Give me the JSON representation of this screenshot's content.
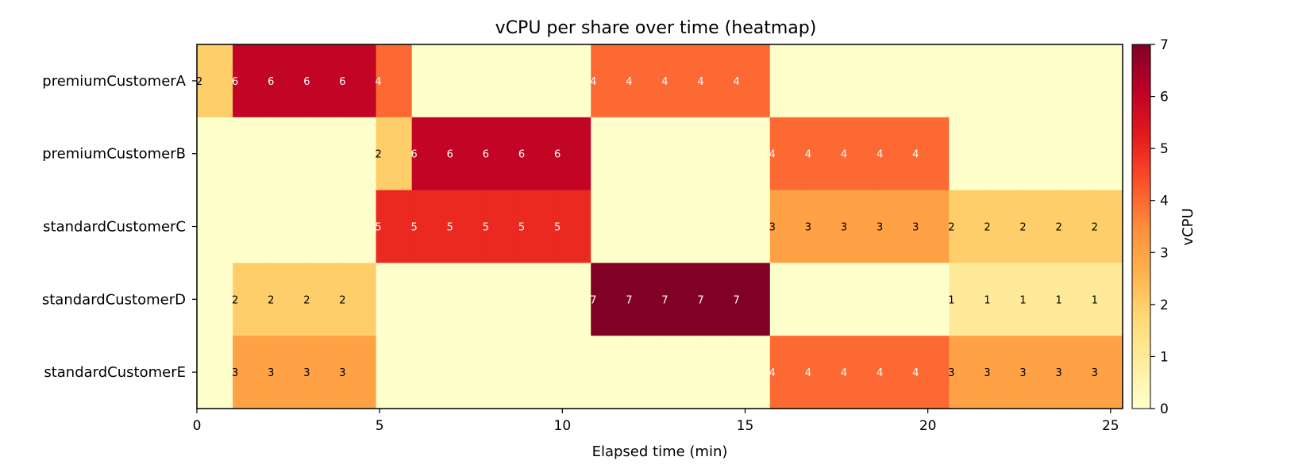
{
  "chart_data": {
    "type": "heatmap",
    "title": "vCPU per share over time (heatmap)",
    "xlabel": "Elapsed time (min)",
    "colorbar_label": "vCPU",
    "rows": [
      "premiumCustomerA",
      "premiumCustomerB",
      "standardCustomerC",
      "standardCustomerD",
      "standardCustomerE"
    ],
    "x_ticks": [
      0,
      5,
      10,
      15,
      20,
      25
    ],
    "xlim": [
      0,
      25.33
    ],
    "colorbar_ticks": [
      0,
      1,
      2,
      3,
      4,
      5,
      6,
      7
    ],
    "vmin": 0,
    "vmax": 7,
    "colormap": "YlOrRd",
    "column_edges": [
      0,
      0.98,
      1.96,
      2.94,
      3.92,
      4.9,
      5.88,
      6.86,
      7.84,
      8.82,
      9.8,
      10.78,
      11.76,
      12.74,
      13.72,
      14.7,
      15.68,
      16.66,
      17.64,
      18.62,
      19.6,
      20.58,
      21.56,
      22.54,
      23.52,
      24.5,
      25.33
    ],
    "values": [
      [
        2,
        6,
        6,
        6,
        6,
        4,
        0,
        0,
        0,
        0,
        0,
        4,
        4,
        4,
        4,
        4,
        0,
        0,
        0,
        0,
        0,
        0,
        0,
        0,
        0,
        0
      ],
      [
        0,
        0,
        0,
        0,
        0,
        2,
        6,
        6,
        6,
        6,
        6,
        0,
        0,
        0,
        0,
        0,
        4,
        4,
        4,
        4,
        4,
        0,
        0,
        0,
        0,
        0
      ],
      [
        0,
        0,
        0,
        0,
        0,
        5,
        5,
        5,
        5,
        5,
        5,
        0,
        0,
        0,
        0,
        0,
        3,
        3,
        3,
        3,
        3,
        2,
        2,
        2,
        2,
        2
      ],
      [
        0,
        2,
        2,
        2,
        2,
        0,
        0,
        0,
        0,
        0,
        0,
        7,
        7,
        7,
        7,
        7,
        0,
        0,
        0,
        0,
        0,
        1,
        1,
        1,
        1,
        1
      ],
      [
        0,
        3,
        3,
        3,
        3,
        0,
        0,
        0,
        0,
        0,
        0,
        0,
        0,
        0,
        0,
        0,
        4,
        4,
        4,
        4,
        4,
        3,
        3,
        3,
        3,
        3
      ]
    ]
  }
}
